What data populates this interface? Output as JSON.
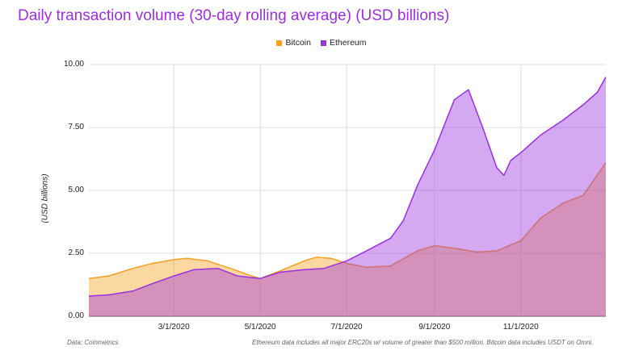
{
  "chart_data": {
    "type": "area",
    "title": "Daily transaction volume (30-day rolling average) (USD billions)",
    "ylabel": "(USD billions)",
    "xlabel": "",
    "ylim": [
      0,
      10
    ],
    "xlim": [
      "2020-01-01",
      "2020-12-31"
    ],
    "yticks": [
      "0.00",
      "2.50",
      "5.00",
      "7.50",
      "10.00"
    ],
    "xticks": [
      "3/1/2020",
      "5/1/2020",
      "7/1/2020",
      "9/1/2020",
      "11/1/2020"
    ],
    "grid": true,
    "legend_position": "top-center",
    "colors": {
      "Bitcoin": "#f5a020",
      "Ethereum": "#9b2fe0"
    },
    "series": [
      {
        "name": "Bitcoin",
        "x": [
          "2020-01-01",
          "2020-01-15",
          "2020-02-01",
          "2020-02-15",
          "2020-03-01",
          "2020-03-10",
          "2020-03-25",
          "2020-04-10",
          "2020-04-25",
          "2020-05-01",
          "2020-05-15",
          "2020-06-01",
          "2020-06-10",
          "2020-06-20",
          "2020-07-01",
          "2020-07-15",
          "2020-08-01",
          "2020-08-20",
          "2020-09-01",
          "2020-09-15",
          "2020-10-01",
          "2020-10-15",
          "2020-11-01",
          "2020-11-15",
          "2020-12-01",
          "2020-12-15",
          "2020-12-31"
        ],
        "values": [
          1.5,
          1.6,
          1.9,
          2.1,
          2.25,
          2.3,
          2.2,
          1.9,
          1.6,
          1.5,
          1.8,
          2.2,
          2.35,
          2.3,
          2.1,
          1.95,
          2.0,
          2.6,
          2.8,
          2.7,
          2.55,
          2.6,
          3.0,
          3.9,
          4.5,
          4.8,
          6.1
        ]
      },
      {
        "name": "Ethereum",
        "x": [
          "2020-01-01",
          "2020-01-15",
          "2020-02-01",
          "2020-02-15",
          "2020-03-01",
          "2020-03-15",
          "2020-04-01",
          "2020-04-15",
          "2020-05-01",
          "2020-05-15",
          "2020-06-01",
          "2020-06-15",
          "2020-07-01",
          "2020-07-15",
          "2020-08-01",
          "2020-08-10",
          "2020-08-20",
          "2020-09-01",
          "2020-09-15",
          "2020-09-25",
          "2020-10-05",
          "2020-10-15",
          "2020-10-20",
          "2020-10-25",
          "2020-11-01",
          "2020-11-15",
          "2020-12-01",
          "2020-12-15",
          "2020-12-25",
          "2020-12-31"
        ],
        "values": [
          0.8,
          0.85,
          1.0,
          1.3,
          1.6,
          1.85,
          1.9,
          1.6,
          1.5,
          1.75,
          1.85,
          1.9,
          2.2,
          2.6,
          3.1,
          3.8,
          5.2,
          6.6,
          8.6,
          9.0,
          7.5,
          5.9,
          5.6,
          6.2,
          6.5,
          7.2,
          7.8,
          8.4,
          8.9,
          9.5
        ]
      }
    ]
  }
}
